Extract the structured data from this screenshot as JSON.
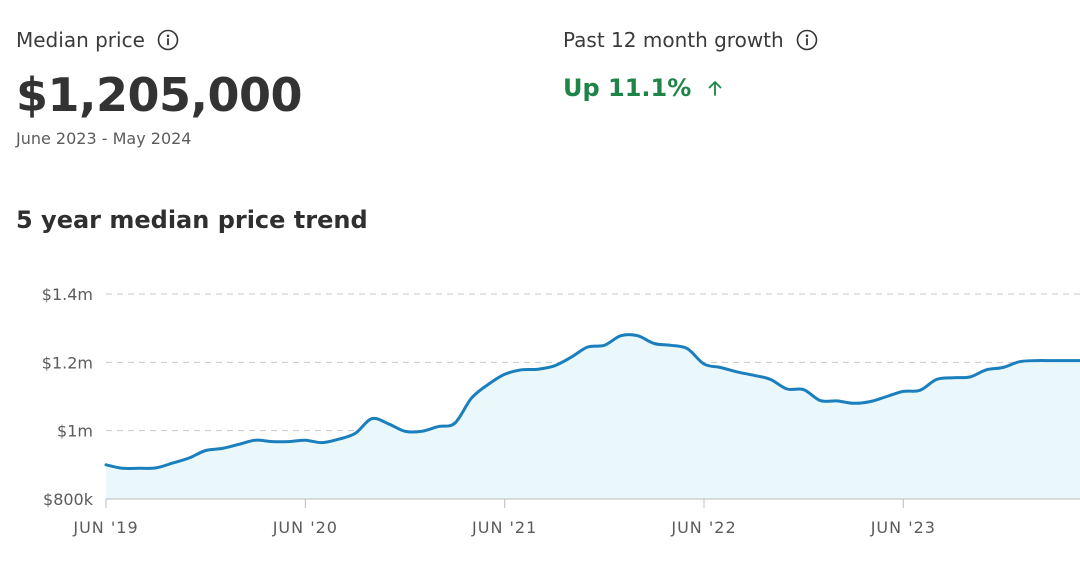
{
  "median_price": {
    "label": "Median price",
    "value": "$1,205,000",
    "date_range": "June 2023 - May 2024",
    "info_icon": "info-icon"
  },
  "growth": {
    "label": "Past 12 month growth",
    "value": "Up 11.1%",
    "direction_icon": "arrow-up-icon",
    "info_icon": "info-icon",
    "color": "#1e8447"
  },
  "section_title": "5 year median price trend",
  "chart_data": {
    "type": "area",
    "title": "5 year median price trend",
    "line_color": "#1b7fbd",
    "fill_color": "#eaf8fc",
    "grid": "y-dashed",
    "ylim": [
      800000,
      1400000
    ],
    "y_ticks": [
      {
        "value": 1400000,
        "label": "$1.4m"
      },
      {
        "value": 1200000,
        "label": "$1.2m"
      },
      {
        "value": 1000000,
        "label": "$1m"
      },
      {
        "value": 800000,
        "label": "$800k"
      }
    ],
    "x_ticks": [
      {
        "month": 0,
        "label": "JUN '19"
      },
      {
        "month": 12,
        "label": "JUN '20"
      },
      {
        "month": 24,
        "label": "JUN '21"
      },
      {
        "month": 36,
        "label": "JUN '22"
      },
      {
        "month": 48,
        "label": "JUN '23"
      }
    ],
    "x_months": [
      0,
      1,
      2,
      3,
      4,
      5,
      6,
      7,
      8,
      9,
      10,
      11,
      12,
      13,
      14,
      15,
      16,
      17,
      18,
      19,
      20,
      21,
      22,
      23,
      24,
      25,
      26,
      27,
      28,
      29,
      30,
      31,
      32,
      33,
      34,
      35,
      36,
      37,
      38,
      39,
      40,
      41,
      42,
      43,
      44,
      45,
      46,
      47,
      48,
      49,
      50,
      51,
      52,
      53,
      54,
      55,
      56,
      57,
      58,
      59
    ],
    "values": [
      900000,
      890000,
      890000,
      891000,
      905000,
      920000,
      942000,
      948000,
      960000,
      972000,
      968000,
      968000,
      972000,
      965000,
      975000,
      992000,
      1035000,
      1020000,
      998000,
      998000,
      1012000,
      1022000,
      1095000,
      1135000,
      1165000,
      1178000,
      1180000,
      1190000,
      1215000,
      1245000,
      1250000,
      1278000,
      1278000,
      1255000,
      1250000,
      1240000,
      1195000,
      1185000,
      1172000,
      1162000,
      1150000,
      1122000,
      1120000,
      1088000,
      1087000,
      1080000,
      1085000,
      1100000,
      1115000,
      1118000,
      1150000,
      1155000,
      1157000,
      1178000,
      1185000,
      1202000,
      1205000,
      1205000,
      1205000,
      1205000
    ]
  }
}
